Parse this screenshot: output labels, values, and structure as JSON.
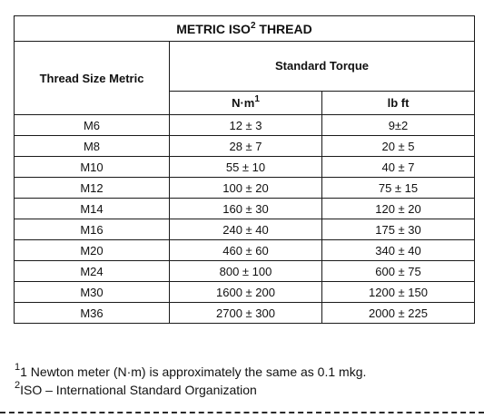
{
  "title": {
    "text": "METRIC ISO",
    "sup": "2",
    "suffix": " THREAD"
  },
  "headers": {
    "thread_size": "Thread Size Metric",
    "standard_torque": "Standard Torque",
    "nm": "N·m",
    "nm_sup": "1",
    "lbft": "lb ft"
  },
  "rows": [
    {
      "size": "M6",
      "nm": "12 ± 3",
      "lbft": "9±2"
    },
    {
      "size": "M8",
      "nm": "28 ± 7",
      "lbft": "20 ± 5"
    },
    {
      "size": "M10",
      "nm": "55 ± 10",
      "lbft": "40 ± 7"
    },
    {
      "size": "M12",
      "nm": "100 ± 20",
      "lbft": "75 ± 15"
    },
    {
      "size": "M14",
      "nm": "160 ± 30",
      "lbft": "120 ± 20"
    },
    {
      "size": "M16",
      "nm": "240 ± 40",
      "lbft": "175 ± 30"
    },
    {
      "size": "M20",
      "nm": "460 ± 60",
      "lbft": "340 ± 40"
    },
    {
      "size": "M24",
      "nm": "800 ± 100",
      "lbft": "600 ± 75"
    },
    {
      "size": "M30",
      "nm": "1600 ± 200",
      "lbft": "1200 ± 150"
    },
    {
      "size": "M36",
      "nm": "2700 ± 300",
      "lbft": "2000 ± 225"
    }
  ],
  "footnotes": [
    {
      "sup": "1",
      "text": "1 Newton meter (N·m) is approximately the same as 0.1 mkg."
    },
    {
      "sup": "2",
      "text": "ISO – International Standard Organization"
    }
  ]
}
